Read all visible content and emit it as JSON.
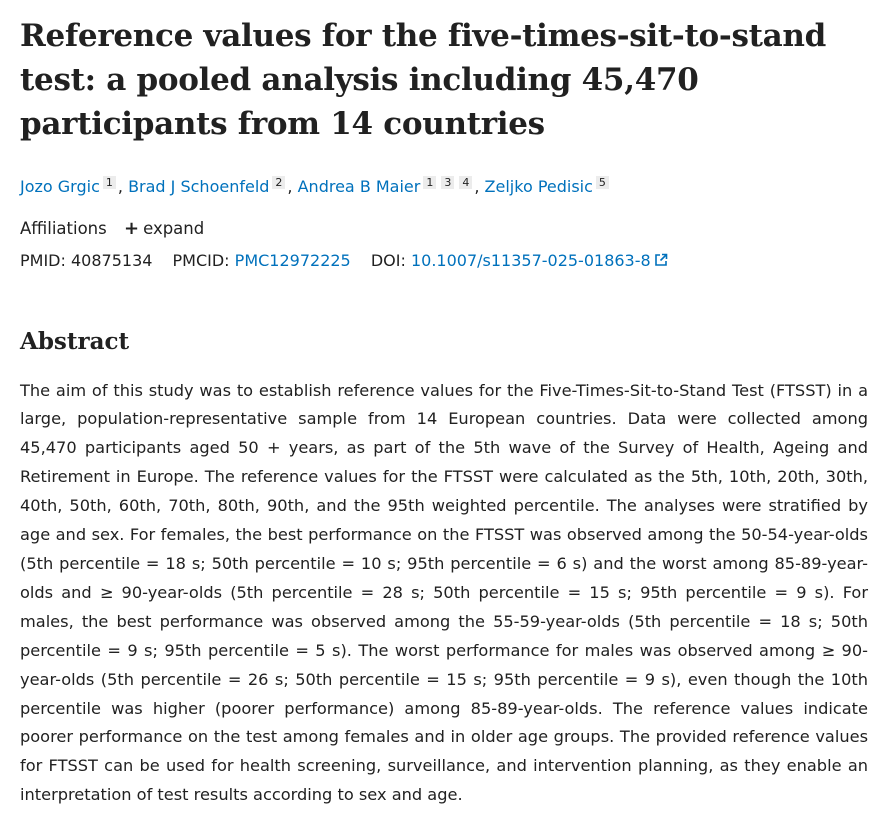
{
  "article": {
    "title": "Reference values for the five-times-sit-to-stand test: a pooled analysis including 45,470 participants from 14 countries",
    "authors": [
      {
        "name": "Jozo Grgic",
        "affiliations": [
          "1"
        ]
      },
      {
        "name": "Brad J Schoenfeld",
        "affiliations": [
          "2"
        ]
      },
      {
        "name": "Andrea B Maier",
        "affiliations": [
          "1",
          "3",
          "4"
        ]
      },
      {
        "name": "Zeljko Pedisic",
        "affiliations": [
          "5"
        ]
      }
    ],
    "separator": ",",
    "affiliations_label": "Affiliations",
    "expand_label": "expand",
    "pmid_label": "PMID:",
    "pmid": "40875134",
    "pmcid_label": "PMCID:",
    "pmcid": "PMC12972225",
    "doi_label": "DOI:",
    "doi": "10.1007/s11357-025-01863-8"
  },
  "abstract": {
    "heading": "Abstract",
    "text": "The aim of this study was to establish reference values for the Five-Times-Sit-to-Stand Test (FTSST) in a large, population-representative sample from 14 European countries. Data were collected among 45,470 participants aged 50 + years, as part of the 5th wave of the Survey of Health, Ageing and Retirement in Europe. The reference values for the FTSST were calculated as the 5th, 10th, 20th, 30th, 40th, 50th, 60th, 70th, 80th, 90th, and the 95th weighted percentile. The analyses were stratified by age and sex. For females, the best performance on the FTSST was observed among the 50-54-year-olds (5th percentile = 18 s; 50th percentile = 10 s; 95th percentile = 6 s) and the worst among 85-89-year-olds and ≥ 90-year-olds (5th percentile = 28 s; 50th percentile = 15 s; 95th percentile = 9 s). For males, the best performance was observed among the 55-59-year-olds (5th percentile = 18 s; 50th percentile = 9 s; 95th percentile = 5 s). The worst performance for males was observed among ≥ 90-year-olds (5th percentile = 26 s; 50th percentile = 15 s; 95th percentile = 9 s), even though the 10th percentile was higher (poorer performance) among 85-89-year-olds. The reference values indicate poorer performance on the test among females and in older age groups. The provided reference values for FTSST can be used for health screening, surveillance, and intervention planning, as they enable an interpretation of test results according to sex and age."
  },
  "icons": {
    "expand": "plus-icon",
    "doi_external": "external-link-icon"
  },
  "colors": {
    "link": "#0071bc",
    "text": "#212121",
    "badge_bg": "#ececec"
  }
}
